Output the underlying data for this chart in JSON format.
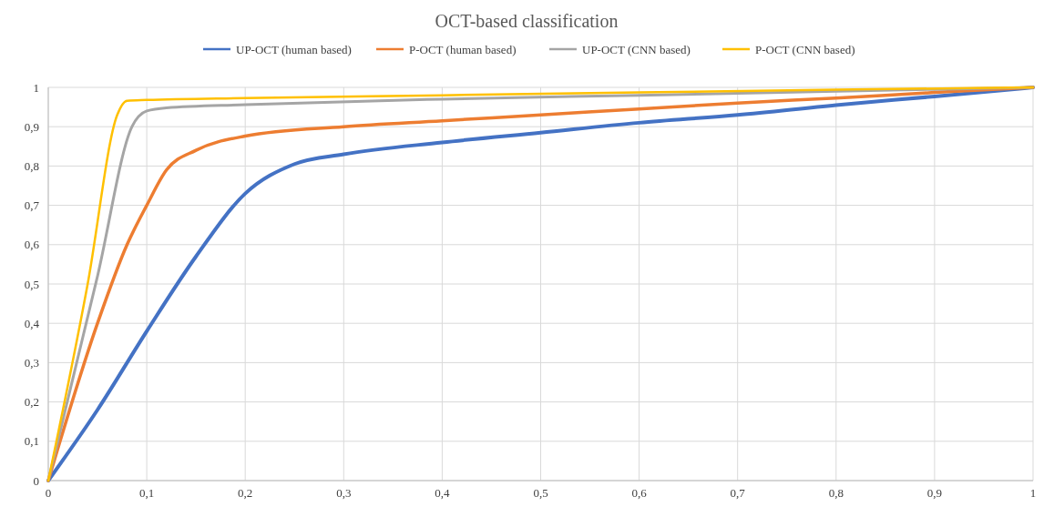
{
  "chart_data": {
    "type": "line",
    "title": "OCT-based classification",
    "legend": "top",
    "grid": true,
    "marker": "none",
    "line_style": "solid",
    "xlim": [
      0,
      1
    ],
    "ylim": [
      0,
      1
    ],
    "xticks": [
      0,
      {
        "value": 0.1,
        "label": "0,1"
      },
      {
        "value": 0.2,
        "label": "0,2"
      },
      {
        "value": 0.3,
        "label": "0,3"
      },
      {
        "value": 0.4,
        "label": "0,4"
      },
      {
        "value": 0.5,
        "label": "0,5"
      },
      {
        "value": 0.6,
        "label": "0,6"
      },
      {
        "value": 0.7,
        "label": "0,7"
      },
      {
        "value": 0.8,
        "label": "0,8"
      },
      {
        "value": 0.9,
        "label": "0,9"
      },
      1
    ],
    "yticks": [
      0,
      {
        "value": 0.1,
        "label": "0,1"
      },
      {
        "value": 0.2,
        "label": "0,2"
      },
      {
        "value": 0.3,
        "label": "0,3"
      },
      {
        "value": 0.4,
        "label": "0,4"
      },
      {
        "value": 0.5,
        "label": "0,5"
      },
      {
        "value": 0.6,
        "label": "0,6"
      },
      {
        "value": 0.7,
        "label": "0,7"
      },
      {
        "value": 0.8,
        "label": "0,8"
      },
      {
        "value": 0.9,
        "label": "0,9"
      },
      1
    ],
    "series": [
      {
        "name": "UP-OCT (human based)",
        "color": "#4472c4",
        "x": [
          0,
          0.05,
          0.1,
          0.15,
          0.2,
          0.25,
          0.3,
          0.4,
          0.5,
          0.6,
          0.7,
          0.8,
          0.9,
          1
        ],
        "values": [
          0,
          0.18,
          0.38,
          0.57,
          0.73,
          0.805,
          0.83,
          0.86,
          0.885,
          0.91,
          0.93,
          0.955,
          0.977,
          1
        ]
      },
      {
        "name": "P-OCT (human based)",
        "color": "#ed7d31",
        "x": [
          0,
          0.05,
          0.08,
          0.1,
          0.12,
          0.15,
          0.2,
          0.3,
          0.4,
          0.5,
          0.6,
          0.7,
          0.8,
          0.9,
          1
        ],
        "values": [
          0,
          0.4,
          0.6,
          0.7,
          0.79,
          0.84,
          0.876,
          0.9,
          0.915,
          0.93,
          0.945,
          0.96,
          0.973,
          0.987,
          1
        ]
      },
      {
        "name": "UP-OCT (CNN based)",
        "color": "#a5a5a5",
        "x": [
          0,
          0.05,
          0.085,
          0.1,
          0.12,
          0.2,
          0.4,
          0.6,
          0.8,
          1
        ],
        "values": [
          0,
          0.52,
          0.9,
          0.94,
          0.948,
          0.956,
          0.97,
          0.98,
          0.99,
          1
        ]
      },
      {
        "name": "P-OCT (CNN based)",
        "color": "#ffc000",
        "x": [
          0,
          0.04,
          0.07,
          0.08,
          0.1,
          0.2,
          0.4,
          0.6,
          0.8,
          1
        ],
        "values": [
          0,
          0.5,
          0.93,
          0.966,
          0.968,
          0.973,
          0.98,
          0.987,
          0.994,
          1
        ]
      }
    ]
  }
}
